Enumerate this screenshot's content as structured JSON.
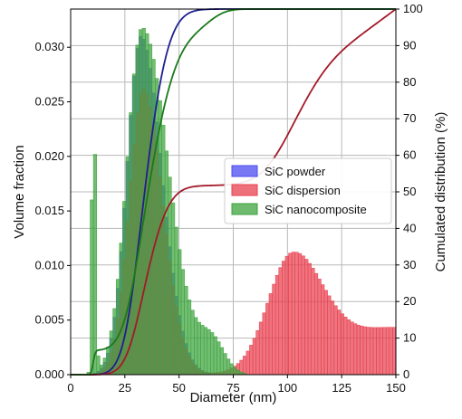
{
  "chart_data": {
    "type": "bar",
    "xlabel": "Diameter (nm)",
    "ylabel": "Volume fraction",
    "y2label": "Cumulated distribution (%)",
    "xlim": [
      0,
      150
    ],
    "ylim": [
      0,
      0.0335
    ],
    "y2lim": [
      0,
      100
    ],
    "grid": true,
    "legend_position": "center-right",
    "x_ticks": [
      "0",
      "25",
      "50",
      "75",
      "100",
      "125",
      "150"
    ],
    "y_ticks": [
      "0.000",
      "0.005",
      "0.010",
      "0.015",
      "0.020",
      "0.025",
      "0.030"
    ],
    "y2_ticks": [
      "0",
      "10",
      "20",
      "30",
      "40",
      "50",
      "60",
      "70",
      "80",
      "90",
      "100"
    ],
    "bin_width": 1.5,
    "bin_start": 7.5,
    "series": [
      {
        "name": "SiC powder",
        "kind": "histogram",
        "color": "#4b4bf0",
        "peaks": [
          {
            "center": 32.5,
            "height": 0.031,
            "width": 6.5,
            "skew_right": 9.5
          }
        ],
        "cumulative_color": "#1f1f8f"
      },
      {
        "name": "SiC dispersion",
        "kind": "histogram",
        "color": "#e8404f",
        "peaks": [
          {
            "center": 33.5,
            "height": 0.0262,
            "width": 6.5,
            "skew_right": 9.0
          },
          {
            "center": 102.0,
            "height": 0.01,
            "width": 11.0,
            "skew_right": 14.0
          },
          {
            "center": 150.0,
            "height": 0.0043,
            "width": 30.0,
            "skew_right": 30.0
          }
        ],
        "cumulative_color": "#a31a2a"
      },
      {
        "name": "SiC nanocomposite",
        "kind": "histogram",
        "color": "#3da33d",
        "peaks": [
          {
            "center": 10.5,
            "height": 0.0282,
            "width": 0.7,
            "skew_right": 0.9
          },
          {
            "center": 33.0,
            "height": 0.0318,
            "width": 7.0,
            "skew_right": 12.0
          },
          {
            "center": 65.0,
            "height": 0.003,
            "width": 6.0,
            "skew_right": 6.0
          }
        ],
        "cumulative_color": "#1a7a1a"
      }
    ]
  }
}
